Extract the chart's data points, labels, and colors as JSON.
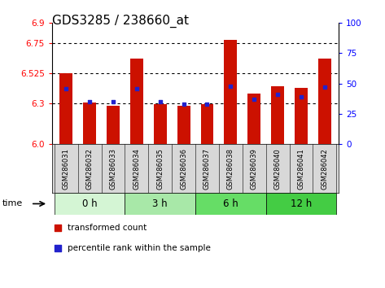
{
  "title": "GDS3285 / 238660_at",
  "samples": [
    "GSM286031",
    "GSM286032",
    "GSM286033",
    "GSM286034",
    "GSM286035",
    "GSM286036",
    "GSM286037",
    "GSM286038",
    "GSM286039",
    "GSM286040",
    "GSM286041",
    "GSM286042"
  ],
  "transformed_count": [
    6.525,
    6.31,
    6.285,
    6.635,
    6.295,
    6.285,
    6.295,
    6.775,
    6.375,
    6.43,
    6.42,
    6.635
  ],
  "percentile_rank": [
    46,
    35,
    35,
    46,
    35,
    33,
    33,
    48,
    37,
    41,
    39,
    47
  ],
  "groups": [
    {
      "label": "0 h",
      "start": 0,
      "end": 3,
      "color": "#d4f5d4"
    },
    {
      "label": "3 h",
      "start": 3,
      "end": 6,
      "color": "#a8e8a8"
    },
    {
      "label": "6 h",
      "start": 6,
      "end": 9,
      "color": "#66dd66"
    },
    {
      "label": "12 h",
      "start": 9,
      "end": 12,
      "color": "#44cc44"
    }
  ],
  "ymin": 6.0,
  "ymax": 6.9,
  "yticks_left": [
    6.0,
    6.3,
    6.525,
    6.75,
    6.9
  ],
  "yticks_right": [
    0,
    25,
    50,
    75,
    100
  ],
  "bar_color": "#cc1100",
  "dot_color": "#2222cc",
  "title_fontsize": 11,
  "tick_fontsize": 7.5,
  "sample_fontsize": 6.0,
  "group_label_fontsize": 8.5,
  "legend_fontsize": 7.5
}
